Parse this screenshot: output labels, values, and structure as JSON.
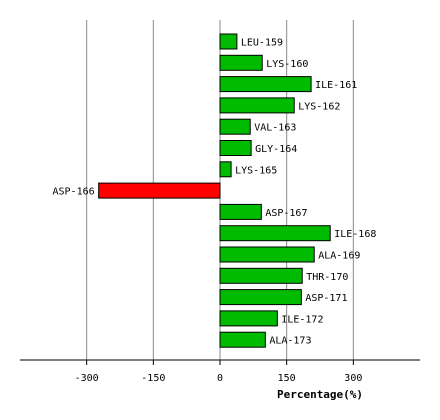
{
  "chart_data": {
    "type": "hbar",
    "x_label": "Percentage(%)",
    "categories": [
      "LEU-159",
      "LYS-160",
      "ILE-161",
      "LYS-162",
      "VAL-163",
      "GLY-164",
      "LYS-165",
      "ASP-166",
      "ASP-167",
      "ILE-168",
      "ALA-169",
      "THR-170",
      "ASP-171",
      "ILE-172",
      "ALA-173"
    ],
    "values": [
      38,
      95,
      205,
      167,
      68,
      70,
      25,
      -273,
      93,
      248,
      212,
      185,
      183,
      129,
      102
    ],
    "color": "#00bb00",
    "negative_color": "#ff0000",
    "xlim": [
      -450,
      450
    ],
    "xticks": [
      -300,
      -150,
      0,
      150,
      300
    ],
    "grid": true
  }
}
